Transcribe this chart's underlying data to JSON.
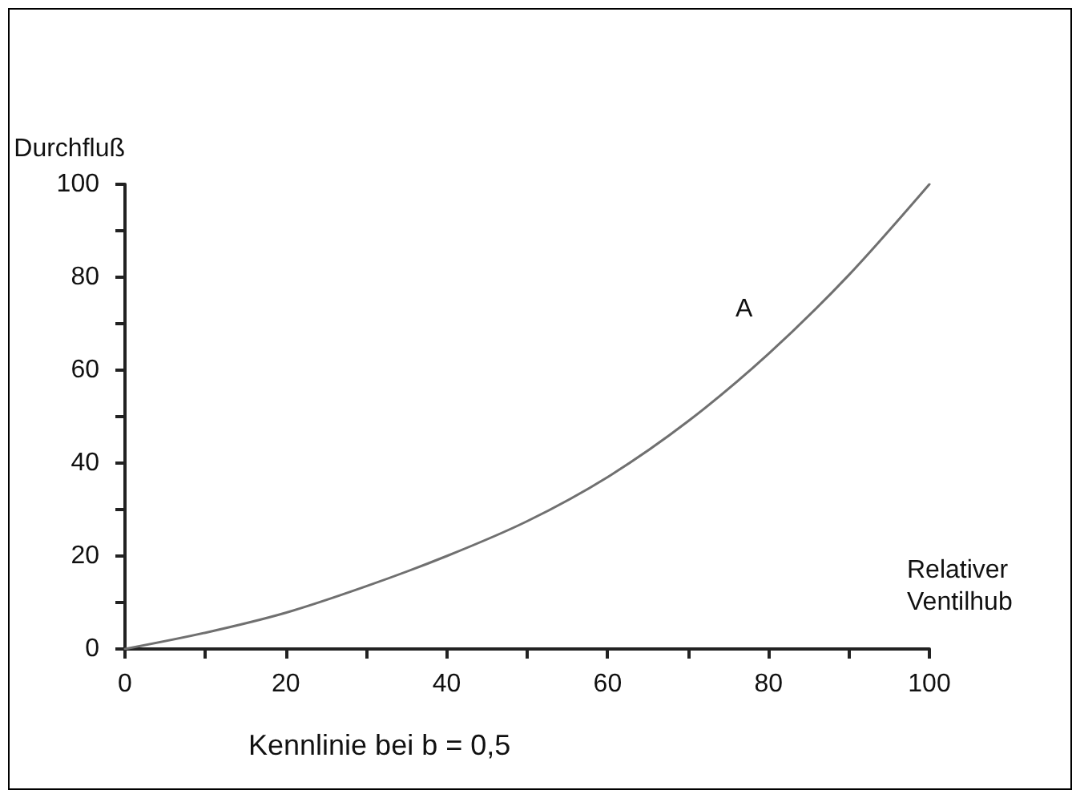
{
  "chart_data": {
    "type": "line",
    "x": [
      0,
      10,
      20,
      30,
      40,
      50,
      60,
      70,
      80,
      90,
      100
    ],
    "series": [
      {
        "color": "#707070",
        "values": [
          0,
          3.5,
          7.8,
          13.5,
          20,
          27.5,
          37,
          49,
          63.5,
          80.5,
          100
        ]
      }
    ],
    "xlabel": "Relativer Ventilhub",
    "ylabel": "Durchfluß",
    "annotations": [
      "A",
      "Kennlinie bei b = 0,5"
    ],
    "xlim": [
      0,
      100
    ],
    "ylim": [
      0,
      100
    ],
    "xticks": [
      0,
      {
        "value": 10,
        "label": null
      },
      20,
      {
        "value": 30,
        "label": null
      },
      40,
      {
        "value": 50,
        "label": null
      },
      60,
      {
        "value": 70,
        "label": null
      },
      80,
      {
        "value": 90,
        "label": null
      },
      100
    ],
    "yticks": [
      0,
      {
        "value": 10,
        "label": null
      },
      20,
      {
        "value": 30,
        "label": null
      },
      40,
      {
        "value": 50,
        "label": null
      },
      60,
      {
        "value": 70,
        "label": null
      },
      80,
      {
        "value": 90,
        "label": null
      },
      100
    ],
    "grid": false,
    "marker": "none",
    "line_style": "solid"
  }
}
